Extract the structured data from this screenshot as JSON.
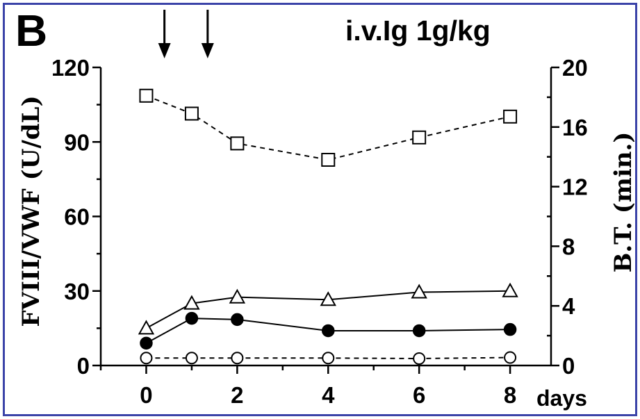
{
  "panel": {
    "letter": "B",
    "treatment": "i.v.Ig 1g/kg"
  },
  "chart_data": {
    "type": "line",
    "xlabel": "days",
    "ylabel": "FVIII/VWF (U/dL)",
    "y2label": "B.T. (min.)",
    "x_ticks": [
      0,
      2,
      4,
      6,
      8
    ],
    "y_ticks": [
      0,
      30,
      60,
      90,
      120
    ],
    "y2_ticks": [
      0,
      4,
      8,
      12,
      16,
      20
    ],
    "xlim": [
      -1,
      8.9
    ],
    "ylim": [
      0,
      120
    ],
    "y2lim": [
      0,
      20
    ],
    "grid": false,
    "arrows_at_days": [
      0.4,
      1.35
    ],
    "series": [
      {
        "marker": "open-square",
        "line": "dashed",
        "axis": "right",
        "x": [
          0,
          1,
          2,
          4,
          6,
          8
        ],
        "y": [
          18.1,
          16.9,
          14.9,
          13.8,
          15.3,
          16.7
        ]
      },
      {
        "marker": "open-triangle",
        "line": "solid",
        "axis": "left",
        "x": [
          0,
          1,
          2,
          4,
          6,
          8
        ],
        "y": [
          15,
          25,
          27.5,
          26.5,
          29.5,
          30
        ]
      },
      {
        "marker": "filled-circle",
        "line": "solid",
        "axis": "left",
        "x": [
          0,
          1,
          2,
          4,
          6,
          8
        ],
        "y": [
          9,
          19,
          18.5,
          14,
          14,
          14.5
        ]
      },
      {
        "marker": "open-circle",
        "line": "dashed",
        "axis": "left",
        "x": [
          0,
          1,
          2,
          4,
          6,
          8
        ],
        "y": [
          3,
          3,
          3,
          3,
          2.8,
          3.2
        ]
      }
    ]
  }
}
